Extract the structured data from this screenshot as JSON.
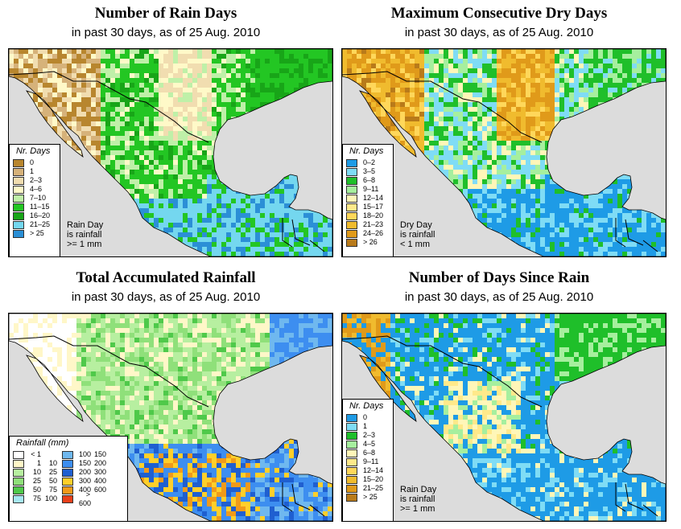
{
  "panels": [
    {
      "title": "Number of Rain Days",
      "subtitle": "in past 30 days, as of  25 Aug. 2010",
      "legend_title": "Nr. Days",
      "legend": [
        {
          "label": "0",
          "color": "#b8862e"
        },
        {
          "label": "1",
          "color": "#d6b27a"
        },
        {
          "label": "2–3",
          "color": "#f1ddb0"
        },
        {
          "label": "4–6",
          "color": "#fff9c8"
        },
        {
          "label": "7–10",
          "color": "#bff0a8"
        },
        {
          "label": "11–15",
          "color": "#23c623"
        },
        {
          "label": "16–20",
          "color": "#18a518"
        },
        {
          "label": "21–25",
          "color": "#74d7ef"
        },
        {
          "label": "> 25",
          "color": "#2b8fd6"
        }
      ],
      "note": [
        "Rain Day",
        "is rainfall",
        ">= 1 mm"
      ]
    },
    {
      "title": "Maximum Consecutive Dry Days",
      "subtitle": "in past 30 days, as of  25 Aug. 2010",
      "legend_title": "Nr. Days",
      "legend": [
        {
          "label": "0–2",
          "color": "#1e9be6"
        },
        {
          "label": "3–5",
          "color": "#7fdcf5"
        },
        {
          "label": "6–8",
          "color": "#1fbf2a"
        },
        {
          "label": "9–11",
          "color": "#a6ef9e"
        },
        {
          "label": "12–14",
          "color": "#fff6b8"
        },
        {
          "label": "15–17",
          "color": "#ffe98a"
        },
        {
          "label": "18–20",
          "color": "#ffd75a"
        },
        {
          "label": "21–23",
          "color": "#f0bb2e"
        },
        {
          "label": "24–26",
          "color": "#e09a1a"
        },
        {
          "label": "> 26",
          "color": "#b87a1a"
        }
      ],
      "note": [
        "Dry Day",
        "is rainfall",
        "< 1 mm"
      ]
    },
    {
      "title": "Total Accumulated Rainfall",
      "subtitle": "in past 30 days, as of  25 Aug. 2010",
      "legend_title": "Rainfall (mm)",
      "legend_col1": [
        {
          "lo": "< 1",
          "hi": "",
          "color": "#ffffff"
        },
        {
          "lo": "1",
          "hi": "10",
          "color": "#fff7c8"
        },
        {
          "lo": "10",
          "hi": "25",
          "color": "#b7efa0"
        },
        {
          "lo": "25",
          "hi": "50",
          "color": "#8fe07a"
        },
        {
          "lo": "50",
          "hi": "75",
          "color": "#4fc94a"
        },
        {
          "lo": "75",
          "hi": "100",
          "color": "#a7e8f3"
        }
      ],
      "legend_col2": [
        {
          "lo": "100",
          "hi": "150",
          "color": "#6fb8ef"
        },
        {
          "lo": "150",
          "hi": "200",
          "color": "#3d8ef0"
        },
        {
          "lo": "200",
          "hi": "300",
          "color": "#1f5fd0"
        },
        {
          "lo": "300",
          "hi": "400",
          "color": "#ffcf2a"
        },
        {
          "lo": "400",
          "hi": "600",
          "color": "#f09a1a"
        },
        {
          "lo": "> 600",
          "hi": "",
          "color": "#e8401a"
        }
      ]
    },
    {
      "title": "Number of Days Since Rain",
      "subtitle": "in past 30 days, as of  25 Aug. 2010",
      "legend_title": "Nr. Days",
      "legend": [
        {
          "label": "0",
          "color": "#1e9be6"
        },
        {
          "label": "1",
          "color": "#7fdcf5"
        },
        {
          "label": "2–3",
          "color": "#1fbf2a"
        },
        {
          "label": "4–5",
          "color": "#a6ef9e"
        },
        {
          "label": "6–8",
          "color": "#fff6b8"
        },
        {
          "label": "9–11",
          "color": "#ffe98a"
        },
        {
          "label": "12–14",
          "color": "#ffd75a"
        },
        {
          "label": "15–20",
          "color": "#f0bb2e"
        },
        {
          "label": "21–25",
          "color": "#e09a1a"
        },
        {
          "label": "> 25",
          "color": "#b87a1a"
        }
      ],
      "note": [
        "Rain Day",
        "is rainfall",
        ">= 1 mm"
      ]
    }
  ],
  "map_colors": {
    "ocean": "#dcdcdc",
    "border": "#000000"
  }
}
